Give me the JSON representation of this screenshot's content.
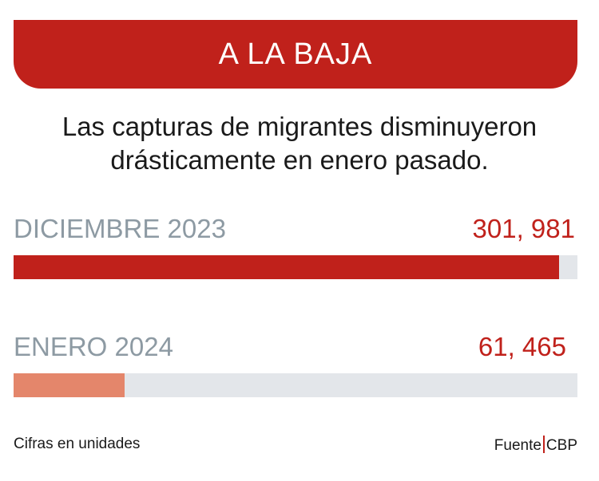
{
  "header": {
    "title": "A LA BAJA"
  },
  "subtitle": {
    "line1": "Las capturas de migrantes disminuyeron",
    "line2": "drásticamente en enero pasado."
  },
  "chart_data": {
    "type": "bar",
    "orientation": "horizontal",
    "categories": [
      "DICIEMBRE 2023",
      "ENERO 2024"
    ],
    "values": [
      301981,
      61465
    ],
    "value_labels": [
      "301, 981",
      "61, 465"
    ],
    "xlim": [
      0,
      312000
    ],
    "colors": [
      "#c0211b",
      "#e4866b"
    ],
    "track_color": "#e3e6ea",
    "grid": false
  },
  "footer": {
    "note": "Cifras en unidades",
    "source_label": "Fuente",
    "source": "CBP"
  }
}
